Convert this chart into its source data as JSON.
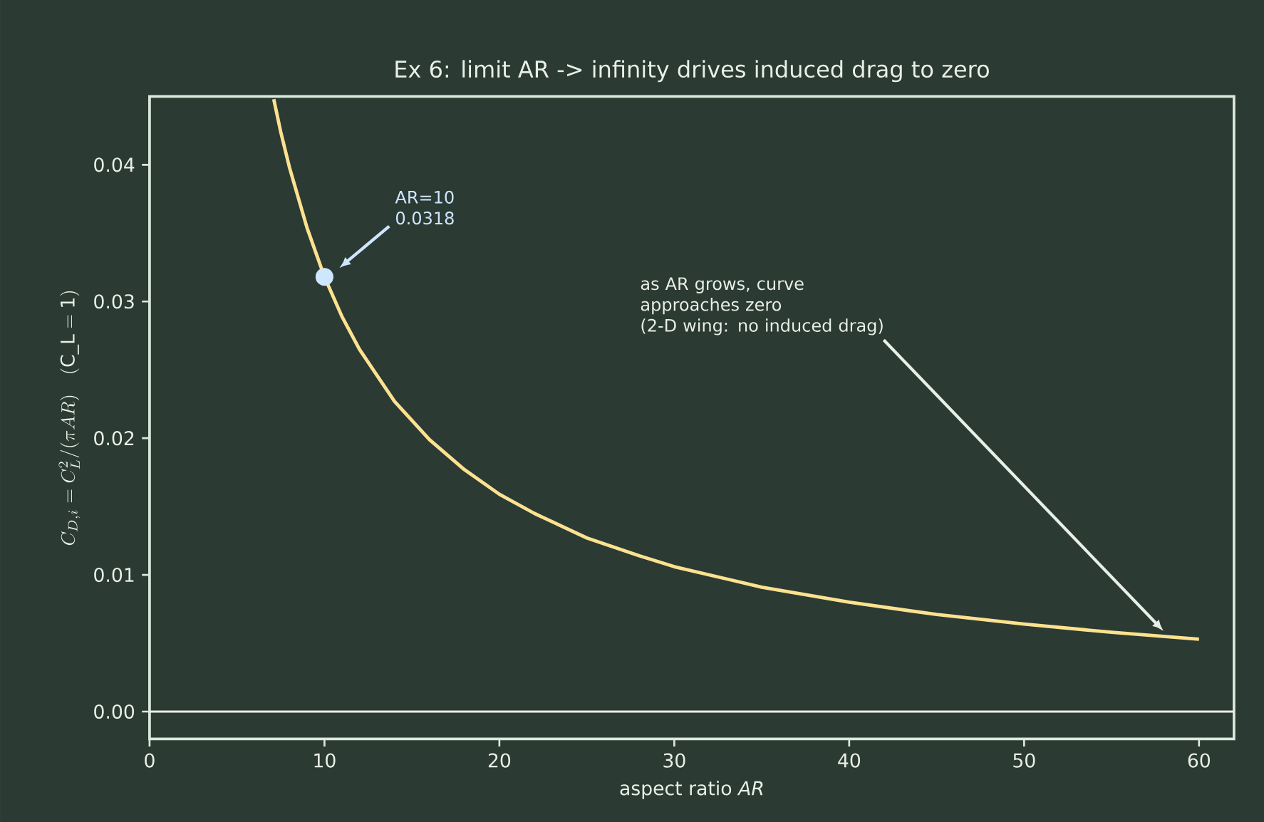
{
  "chart_data": {
    "type": "line",
    "title": "Ex 6: limit AR -> infinity  drives induced drag to zero",
    "xlabel": "aspect ratio *AR*",
    "ylabel": "C_{D,i} = C_L^2/(\\pi AR)\\quad\\mathrm{(C\\_L=1)}",
    "x": [
      7.1,
      7.5,
      8,
      9,
      10,
      11,
      12,
      14,
      16,
      18,
      20,
      22,
      25,
      28,
      30,
      35,
      40,
      45,
      50,
      55,
      60
    ],
    "series": [
      {
        "color": "#fce28f",
        "values": [
          0.0448,
          0.0424,
          0.0398,
          0.0354,
          0.0318,
          0.0289,
          0.0265,
          0.0227,
          0.0199,
          0.0177,
          0.0159,
          0.0145,
          0.0127,
          0.0114,
          0.0106,
          0.0091,
          0.008,
          0.0071,
          0.0064,
          0.0058,
          0.0053
        ]
      },
      {
        "type": "scatter",
        "color": "#cfe6ff",
        "x": [
          10
        ],
        "values": [
          0.0318
        ]
      }
    ],
    "xlim": [
      0,
      62
    ],
    "ylim": [
      -0.002,
      0.045
    ],
    "xticks": [
      0,
      10,
      20,
      30,
      40,
      50,
      60
    ],
    "yticks": [
      {
        "value": 0,
        "label": "0.00"
      },
      0.01,
      0.02,
      0.03,
      0.04
    ],
    "ref_lines": [
      {
        "axis": "y",
        "value": 0,
        "color": "#e8efe6"
      }
    ],
    "annotations": [
      "AR=10\n0.0318",
      "as AR grows, curve\napproaches zero\n(2-D wing: no induced drag)"
    ]
  }
}
